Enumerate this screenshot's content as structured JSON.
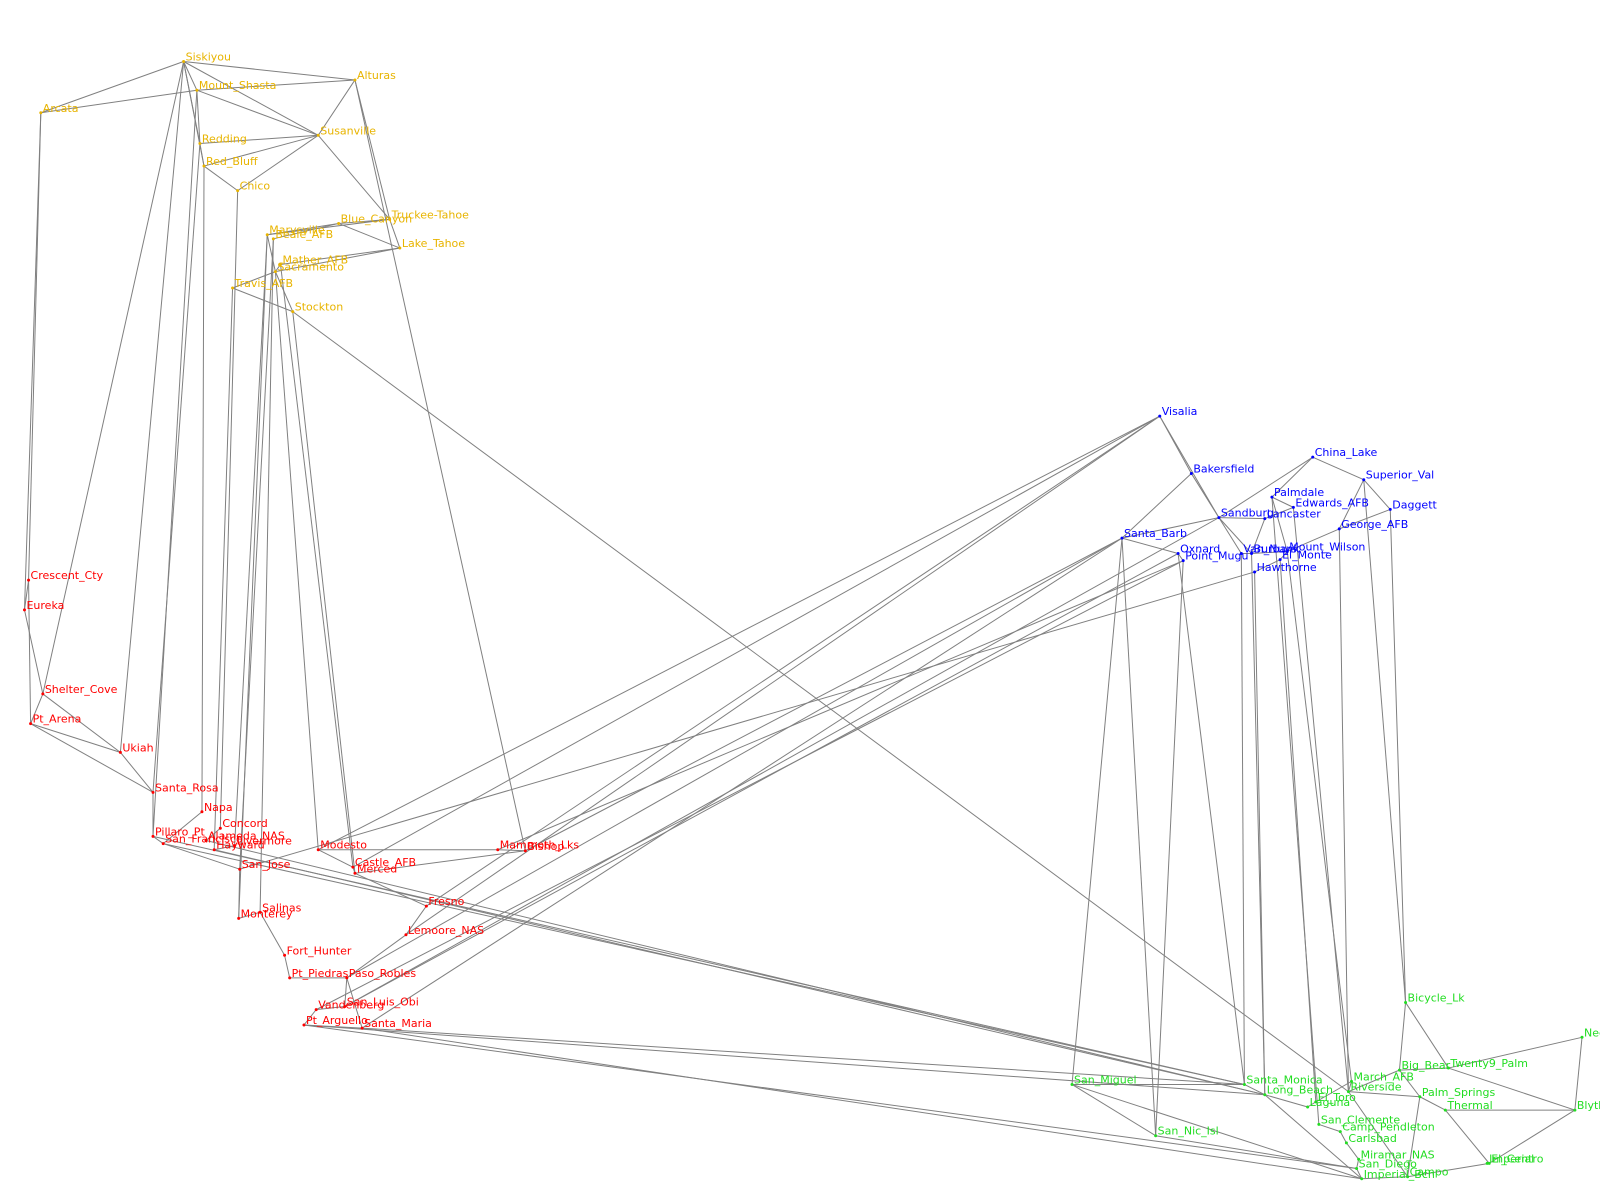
{
  "groups": [
    {
      "color": "#e8b400",
      "nodes": [
        "Siskiyou",
        "Alturas",
        "Arcata",
        "Mount_Shasta",
        "Susanville",
        "Redding",
        "Red_Bluff",
        "Chico",
        "Blue_Canyon",
        "Truckee-Tahoe",
        "Lake_Tahoe",
        "Marysville",
        "Beale_AFB",
        "Sacramento",
        "Mather_AFB",
        "Travis_AFB",
        "Stockton"
      ]
    },
    {
      "color": "#0000ff",
      "nodes": [
        "Visalia",
        "Bakersfield",
        "China_Lake",
        "Superior_Val",
        "Daggett",
        "Palmdale",
        "Edwards_AFB",
        "Lancaster",
        "Sandburg",
        "George_AFB",
        "Santa_Barb",
        "Oxnard",
        "Point_Mugu",
        "Van_Nuys",
        "Burbank",
        "Mount_Wilson",
        "El_Monte",
        "Hawthorne"
      ]
    },
    {
      "color": "#ff0000",
      "nodes": [
        "Crescent_Cty",
        "Eureka",
        "Shelter_Cove",
        "Pt_Arena",
        "Ukiah",
        "Santa_Rosa",
        "Napa",
        "Concord",
        "Alameda_NAS",
        "Livermore",
        "Hayward",
        "Pillaro_Pt",
        "San_Francisco",
        "Modesto",
        "Castle_AFB",
        "Merced",
        "San_Jose",
        "Mammoth_Lks",
        "Bishop",
        "Fresno",
        "Monterey",
        "Salinas",
        "Lemoore_NAS",
        "Fort_Hunter",
        "Pt_Piedras",
        "Paso_Robles",
        "San_Luis_Obi",
        "Vandenberg",
        "Pt_Arguello",
        "Santa_Maria"
      ]
    },
    {
      "color": "#22dd22",
      "nodes": [
        "Bicycle_Lk",
        "Needles",
        "Twenty9_Palm",
        "Big_Bear",
        "Palm_Springs",
        "Thermal",
        "Blythe",
        "Santa_Monica",
        "San_Miguel",
        "Riverside",
        "March_AFB",
        "El_Toro",
        "Laguna",
        "Long_Beach",
        "San_Clemente",
        "Camp_Pendleton",
        "Carlsbad",
        "San_Nic_Isl",
        "Miramar_NAS",
        "San_Diego",
        "Imperial_Bch",
        "Campo",
        "El_Centro",
        "Imperial"
      ]
    }
  ]
}
